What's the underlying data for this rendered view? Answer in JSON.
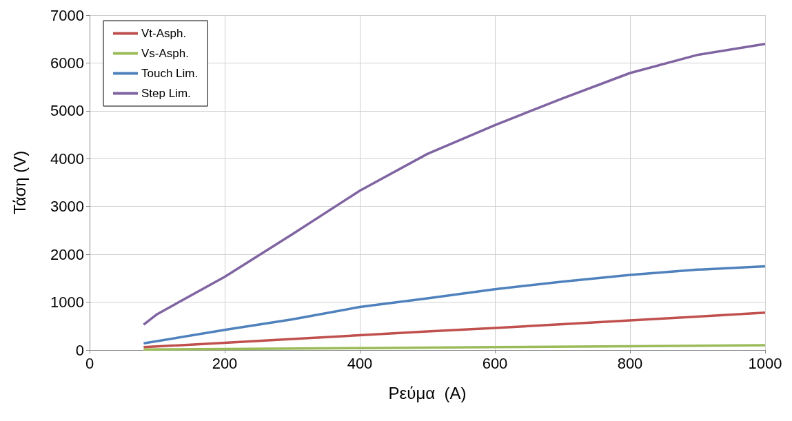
{
  "chart_data": {
    "type": "line",
    "xlabel": "Ρεύμα  (A)",
    "ylabel": "Τάση (V)",
    "xlim": [
      0,
      1000
    ],
    "xticks": [
      0,
      200,
      400,
      600,
      800,
      1000
    ],
    "ylim": [
      0,
      7000
    ],
    "yticks": [
      0,
      1000,
      2000,
      3000,
      4000,
      5000,
      6000,
      7000
    ],
    "grid": true,
    "legend": "top left",
    "marker": "none",
    "line_style": "solid",
    "series": [
      {
        "name": "Vt-Asph.",
        "color": "#c0504d",
        "x": [
          80,
          200,
          300,
          400,
          500,
          600,
          700,
          800,
          900,
          1000
        ],
        "values": [
          60,
          150,
          230,
          310,
          390,
          460,
          540,
          620,
          700,
          780
        ]
      },
      {
        "name": "Vs-Asph.",
        "color": "#9bbb59",
        "x": [
          80,
          200,
          400,
          600,
          800,
          1000
        ],
        "values": [
          10,
          20,
          40,
          60,
          80,
          100
        ]
      },
      {
        "name": "Touch Lim.",
        "color": "#4f81bd",
        "x": [
          80,
          200,
          300,
          400,
          500,
          600,
          700,
          800,
          900,
          1000
        ],
        "values": [
          140,
          420,
          640,
          900,
          1080,
          1270,
          1430,
          1570,
          1680,
          1750
        ]
      },
      {
        "name": "Step Lim.",
        "color": "#8064a2",
        "x": [
          80,
          100,
          200,
          300,
          400,
          500,
          600,
          700,
          800,
          900,
          1000
        ],
        "values": [
          530,
          750,
          1530,
          2420,
          3330,
          4100,
          4700,
          5260,
          5790,
          6170,
          6400
        ]
      }
    ]
  }
}
